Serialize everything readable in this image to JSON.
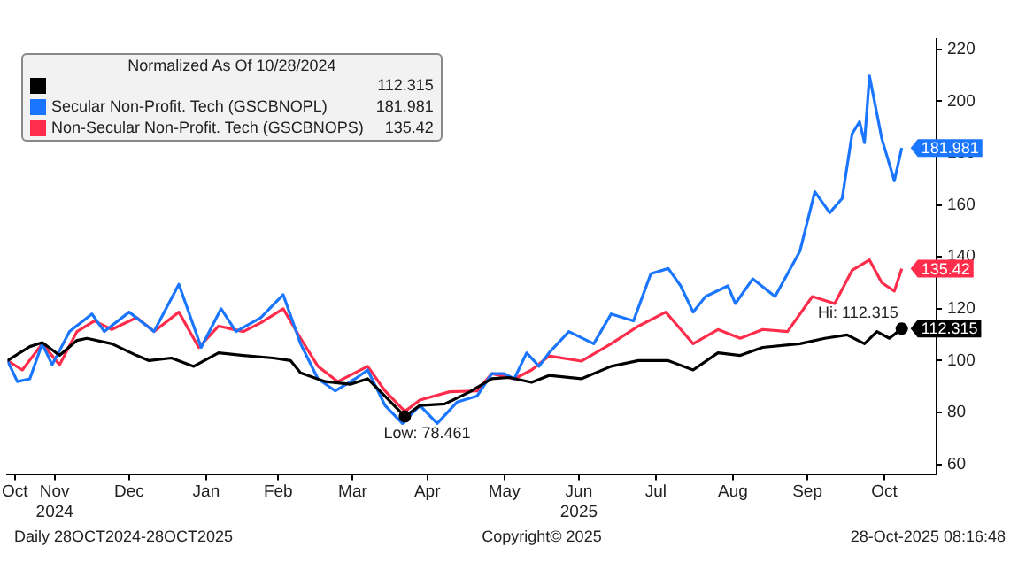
{
  "chart_data": {
    "type": "line",
    "legend_title": "Normalized As Of 10/28/2024",
    "legend": "top left",
    "grid": false,
    "marker": "none",
    "line_style": "solid",
    "xlim": [
      "2024-10-28",
      "2025-11-06"
    ],
    "xticks": [
      {
        "value": "2024-10-31",
        "label": "Oct"
      },
      {
        "value": "2024-11-16",
        "label": "Nov\n2024"
      },
      {
        "value": "2024-12-16",
        "label": "Dec"
      },
      {
        "value": "2025-01-16",
        "label": "Jan"
      },
      {
        "value": "2025-02-14",
        "label": "Feb"
      },
      {
        "value": "2025-03-16",
        "label": "Mar"
      },
      {
        "value": "2025-04-15",
        "label": "Apr"
      },
      {
        "value": "2025-05-16",
        "label": "May"
      },
      {
        "value": "2025-06-15",
        "label": "Jun\n2025"
      },
      {
        "value": "2025-07-16",
        "label": "Jul"
      },
      {
        "value": "2025-08-16",
        "label": "Aug"
      },
      {
        "value": "2025-09-15",
        "label": "Sep"
      },
      {
        "value": "2025-10-16",
        "label": "Oct"
      }
    ],
    "ylim": [
      56,
      224
    ],
    "yticks": [
      60,
      80,
      100,
      120,
      140,
      160,
      180,
      200,
      220
    ],
    "series": [
      {
        "color": "#000000",
        "x": [
          "2024-10-28",
          "2024-11-06",
          "2024-11-11",
          "2024-11-18",
          "2024-11-25",
          "2024-11-29",
          "2024-12-09",
          "2024-12-19",
          "2024-12-24",
          "2025-01-02",
          "2025-01-11",
          "2025-01-21",
          "2025-01-31",
          "2025-02-12",
          "2025-02-19",
          "2025-02-23",
          "2025-03-05",
          "2025-03-15",
          "2025-03-22",
          "2025-03-29",
          "2025-04-06",
          "2025-04-12",
          "2025-04-22",
          "2025-05-02",
          "2025-05-11",
          "2025-05-18",
          "2025-05-27",
          "2025-06-03",
          "2025-06-16",
          "2025-06-28",
          "2025-07-09",
          "2025-07-21",
          "2025-07-31",
          "2025-08-10",
          "2025-08-19",
          "2025-08-28",
          "2025-09-12",
          "2025-09-22",
          "2025-10-01",
          "2025-10-08",
          "2025-10-13",
          "2025-10-18",
          "2025-10-23"
        ],
        "values": [
          100,
          105.4,
          107,
          102,
          107.8,
          108.6,
          106.5,
          102,
          100,
          101,
          97.8,
          103,
          102,
          101,
          100,
          95.3,
          91.9,
          90.9,
          93,
          86.3,
          78.461,
          82.7,
          83.3,
          87.9,
          93,
          93.5,
          91.6,
          94.3,
          93,
          97.8,
          100,
          100,
          96.4,
          103,
          102,
          105.1,
          106.5,
          108.6,
          109.9,
          106.5,
          111.2,
          108.6,
          112.315
        ],
        "value_labels": [
          null,
          null,
          null,
          null,
          null,
          null,
          null,
          null,
          null,
          null,
          null,
          null,
          null,
          null,
          null,
          null,
          null,
          null,
          null,
          null,
          null,
          null,
          null,
          null,
          null,
          null,
          null,
          null,
          null,
          null,
          null,
          null,
          null,
          null,
          null,
          null,
          null,
          null,
          null,
          null,
          null,
          null,
          "112.315"
        ]
      },
      {
        "name": "Secular Non-Profit. Tech (GSCBNOPL)",
        "color": "#1a75ff",
        "x": [
          "2024-10-28",
          "2024-11-01",
          "2024-11-06",
          "2024-11-11",
          "2024-11-15",
          "2024-11-22",
          "2024-12-01",
          "2024-12-06",
          "2024-12-16",
          "2024-12-26",
          "2025-01-05",
          "2025-01-14",
          "2025-01-22",
          "2025-01-28",
          "2025-02-07",
          "2025-02-16",
          "2025-02-23",
          "2025-03-02",
          "2025-03-09",
          "2025-03-17",
          "2025-03-22",
          "2025-03-29",
          "2025-04-05",
          "2025-04-12",
          "2025-04-19",
          "2025-04-27",
          "2025-05-05",
          "2025-05-11",
          "2025-05-16",
          "2025-05-20",
          "2025-05-25",
          "2025-05-30",
          "2025-06-03",
          "2025-06-11",
          "2025-06-21",
          "2025-06-28",
          "2025-07-07",
          "2025-07-14",
          "2025-07-21",
          "2025-07-26",
          "2025-07-31",
          "2025-08-05",
          "2025-08-14",
          "2025-08-17",
          "2025-08-24",
          "2025-09-02",
          "2025-09-12",
          "2025-09-18",
          "2025-09-24",
          "2025-09-29",
          "2025-10-03",
          "2025-10-06",
          "2025-10-08",
          "2025-10-10",
          "2025-10-15",
          "2025-10-20",
          "2025-10-23"
        ],
        "values": [
          100,
          91.9,
          93,
          106.5,
          98.4,
          111.2,
          118,
          111.2,
          118.7,
          111.2,
          129.4,
          105.1,
          120,
          111.2,
          116.6,
          125.4,
          106.5,
          93,
          88.3,
          93,
          96.4,
          82.7,
          75.8,
          82.7,
          75.8,
          84,
          86.3,
          95,
          95,
          93,
          103,
          97.8,
          103,
          111.2,
          106.5,
          118,
          115.3,
          133.5,
          135.5,
          128.8,
          118.7,
          124.7,
          128.8,
          122,
          131.5,
          124.7,
          142.2,
          165.1,
          157,
          162.5,
          187.4,
          192.1,
          184,
          209.7,
          185.4,
          169.3,
          181.981
        ],
        "value_labels": [
          null,
          null,
          null,
          null,
          null,
          null,
          null,
          null,
          null,
          null,
          null,
          null,
          null,
          null,
          null,
          null,
          null,
          null,
          null,
          null,
          null,
          null,
          null,
          null,
          null,
          null,
          null,
          null,
          null,
          null,
          null,
          null,
          null,
          null,
          null,
          null,
          null,
          null,
          null,
          null,
          null,
          null,
          null,
          null,
          null,
          null,
          null,
          null,
          null,
          null,
          null,
          null,
          null,
          null,
          null,
          null,
          "181.981"
        ]
      },
      {
        "name": "Non-Secular Non-Profit. Tech (GSCBNOPS)",
        "color": "#ff2d4b",
        "x": [
          "2024-10-28",
          "2024-11-03",
          "2024-11-11",
          "2024-11-18",
          "2024-11-25",
          "2024-12-02",
          "2024-12-09",
          "2024-12-19",
          "2024-12-26",
          "2025-01-05",
          "2025-01-13",
          "2025-01-21",
          "2025-01-31",
          "2025-02-07",
          "2025-02-16",
          "2025-02-23",
          "2025-03-02",
          "2025-03-10",
          "2025-03-22",
          "2025-03-29",
          "2025-04-06",
          "2025-04-12",
          "2025-04-24",
          "2025-05-05",
          "2025-05-11",
          "2025-05-20",
          "2025-05-27",
          "2025-06-03",
          "2025-06-16",
          "2025-06-28",
          "2025-07-09",
          "2025-07-20",
          "2025-07-31",
          "2025-08-10",
          "2025-08-19",
          "2025-08-28",
          "2025-09-07",
          "2025-09-17",
          "2025-09-26",
          "2025-10-03",
          "2025-10-10",
          "2025-10-15",
          "2025-10-20",
          "2025-10-23"
        ],
        "values": [
          100,
          96.4,
          106.5,
          98.4,
          111.2,
          115.3,
          112,
          116.6,
          111.2,
          118.7,
          105.1,
          113.3,
          111.2,
          114.6,
          120,
          108.6,
          97.8,
          91.9,
          97.8,
          88.3,
          80.4,
          84.8,
          88,
          88.3,
          95,
          93,
          96.4,
          101.8,
          99.8,
          106.5,
          113.3,
          118.7,
          106.5,
          112,
          108.6,
          112,
          111.2,
          124.7,
          122,
          134.8,
          138.8,
          130,
          126.8,
          135.42
        ],
        "value_labels": [
          null,
          null,
          null,
          null,
          null,
          null,
          null,
          null,
          null,
          null,
          null,
          null,
          null,
          null,
          null,
          null,
          null,
          null,
          null,
          null,
          null,
          null,
          null,
          null,
          null,
          null,
          null,
          null,
          null,
          null,
          null,
          null,
          null,
          null,
          null,
          null,
          null,
          null,
          null,
          null,
          null,
          null,
          null,
          "135.42"
        ]
      }
    ],
    "annotations": [
      {
        "text": "Low: 78.461",
        "x": "2025-04-06",
        "y": 78.461
      },
      {
        "text": "Hi: 112.315",
        "x": "2025-10-23",
        "y": 112.315
      },
      "Daily 28OCT2024-28OCT2025",
      "Copyright© 2025",
      "28-Oct-2025 08:16:48"
    ]
  }
}
